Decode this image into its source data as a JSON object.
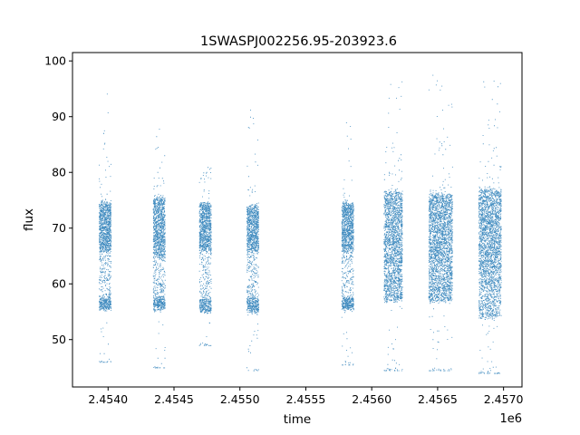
{
  "chart_data": {
    "type": "scatter",
    "title": "1SWASPJ002256.95-203923.6",
    "xlabel": "time",
    "ylabel": "flux",
    "x_offset_label": "1e6",
    "xlim": [
      2.45373,
      2.45714
    ],
    "ylim": [
      41.5,
      101.5
    ],
    "grid": false,
    "marker_color": "#1f77b4",
    "x_ticks": [
      {
        "value": 2.454,
        "label": "2.4540"
      },
      {
        "value": 2.4545,
        "label": "2.4545"
      },
      {
        "value": 2.455,
        "label": "2.4550"
      },
      {
        "value": 2.4555,
        "label": "2.4555"
      },
      {
        "value": 2.456,
        "label": "2.4560"
      },
      {
        "value": 2.4565,
        "label": "2.4565"
      },
      {
        "value": 2.457,
        "label": "2.4570"
      }
    ],
    "y_ticks": [
      {
        "value": 50,
        "label": "50"
      },
      {
        "value": 60,
        "label": "60"
      },
      {
        "value": 70,
        "label": "70"
      },
      {
        "value": 80,
        "label": "80"
      },
      {
        "value": 90,
        "label": "90"
      },
      {
        "value": 100,
        "label": "100"
      }
    ],
    "series": [
      {
        "observing_seasons": [
          {
            "x_start": 2.45393,
            "x_end": 2.45402,
            "flux_high": [
              66,
              74.5
            ],
            "flux_low": [
              55.5,
              57.5
            ],
            "flux_range": [
              46,
              94.5
            ],
            "density": 1.0
          },
          {
            "x_start": 2.45434,
            "x_end": 2.45443,
            "flux_high": [
              65,
              75.5
            ],
            "flux_low": [
              55.5,
              57.5
            ],
            "flux_range": [
              45,
              89
            ],
            "density": 1.0
          },
          {
            "x_start": 2.45469,
            "x_end": 2.45478,
            "flux_high": [
              66,
              74.5
            ],
            "flux_low": [
              55,
              57.5
            ],
            "flux_range": [
              49,
              81
            ],
            "density": 0.9
          },
          {
            "x_start": 2.45505,
            "x_end": 2.45514,
            "flux_high": [
              66,
              74
            ],
            "flux_low": [
              55,
              57.5
            ],
            "flux_range": [
              44.5,
              93
            ],
            "density": 0.9
          },
          {
            "x_start": 2.45577,
            "x_end": 2.45586,
            "flux_high": [
              66,
              74.5
            ],
            "flux_low": [
              55.5,
              57.5
            ],
            "flux_range": [
              45.5,
              90
            ],
            "density": 1.0
          },
          {
            "x_start": 2.45609,
            "x_end": 2.45623,
            "flux_high": [
              64,
              76.5
            ],
            "flux_low": [
              57,
              61
            ],
            "flux_range": [
              44.5,
              98
            ],
            "density": 1.4
          },
          {
            "x_start": 2.45643,
            "x_end": 2.45661,
            "flux_high": [
              64,
              76
            ],
            "flux_low": [
              57,
              61
            ],
            "flux_range": [
              44.5,
              97.5
            ],
            "density": 1.8
          },
          {
            "x_start": 2.45681,
            "x_end": 2.45698,
            "flux_high": [
              63,
              77
            ],
            "flux_low": [
              54,
              60
            ],
            "flux_range": [
              44,
              98
            ],
            "density": 1.8
          }
        ]
      }
    ]
  }
}
